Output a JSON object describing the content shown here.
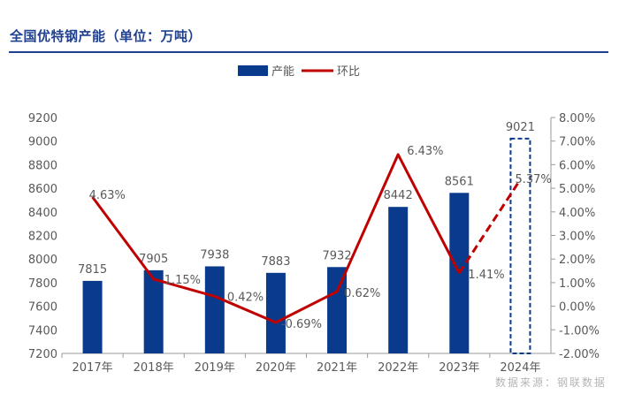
{
  "title": "全国优特钢产能（单位：万吨）",
  "source": "数据来源：钢联数据",
  "colors": {
    "bar": "#0A3A8C",
    "line": "#C00000",
    "title": "#1F3F8F",
    "axis": "#595959"
  },
  "chart_data": {
    "type": "bar",
    "categories": [
      "2017年",
      "2018年",
      "2019年",
      "2020年",
      "2021年",
      "2022年",
      "2023年",
      "2024年"
    ],
    "series": [
      {
        "name": "产能",
        "type": "bar",
        "axis": "left",
        "values": [
          7815,
          7905,
          7938,
          7883,
          7932,
          8442,
          8561,
          9021
        ],
        "labels": [
          "7815",
          "7905",
          "7938",
          "7883",
          "7932",
          "8442",
          "8561",
          "9021"
        ],
        "forecast_index": 7
      },
      {
        "name": "环比",
        "type": "line",
        "axis": "right",
        "values": [
          4.63,
          1.15,
          0.42,
          -0.69,
          0.62,
          6.43,
          1.41,
          5.37
        ],
        "labels": [
          "4.63%",
          "1.15%",
          "0.42%",
          "-0.69%",
          "0.62%",
          "6.43%",
          "1.41%",
          "5.37%"
        ],
        "forecast_index": 7
      }
    ],
    "y_left": {
      "min": 7200,
      "max": 9200,
      "step": 200,
      "ticks": [
        "7200",
        "7400",
        "7600",
        "7800",
        "8000",
        "8200",
        "8400",
        "8600",
        "8800",
        "9000",
        "9200"
      ]
    },
    "y_right": {
      "min": -2,
      "max": 8,
      "step": 1,
      "ticks": [
        "-2.00%",
        "-1.00%",
        "0.00%",
        "1.00%",
        "2.00%",
        "3.00%",
        "4.00%",
        "5.00%",
        "6.00%",
        "7.00%",
        "8.00%"
      ]
    },
    "legend": {
      "position": "top",
      "items": [
        "产能",
        "环比"
      ]
    },
    "grid": false
  }
}
